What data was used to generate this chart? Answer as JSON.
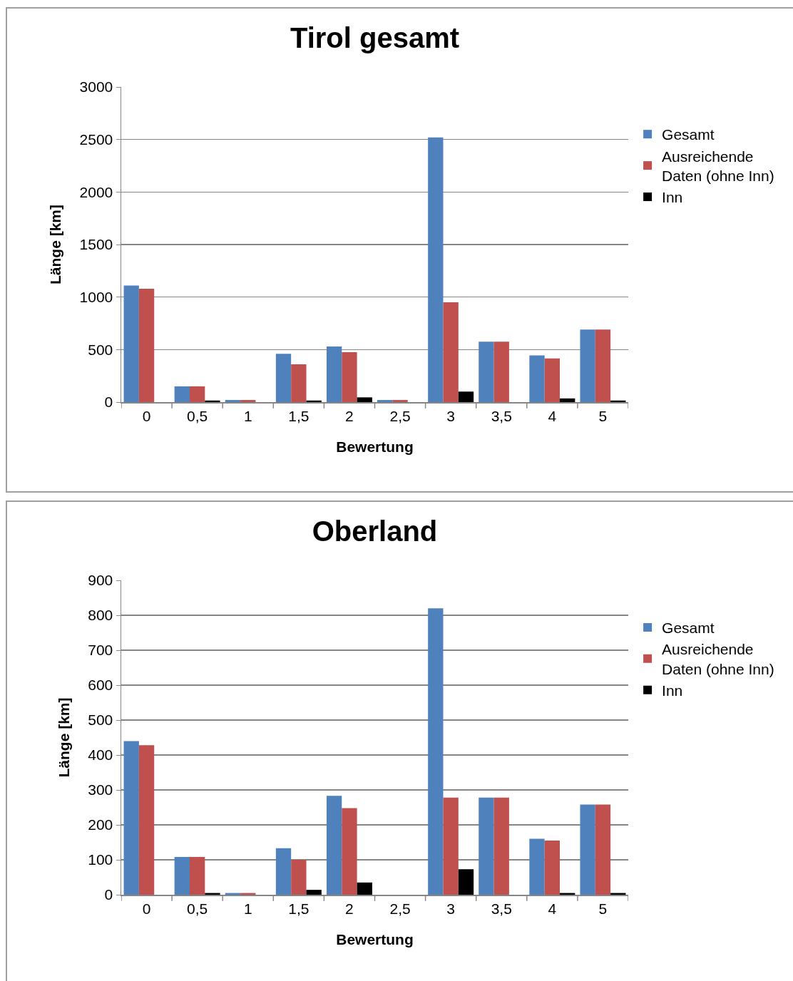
{
  "chart_data": [
    {
      "type": "bar",
      "title": "Tirol gesamt",
      "xlabel": "Bewertung",
      "ylabel": "Länge [km]",
      "categories": [
        "0",
        "0,5",
        "1",
        "1,5",
        "2",
        "2,5",
        "3",
        "3,5",
        "4",
        "5"
      ],
      "series": [
        {
          "name": "Gesamt",
          "color": "#4f81bd",
          "values": [
            1110,
            150,
            20,
            460,
            530,
            20,
            2520,
            575,
            445,
            690
          ]
        },
        {
          "name": "Ausreichende Daten (ohne Inn)",
          "color": "#c0504d",
          "values": [
            1080,
            150,
            20,
            360,
            475,
            20,
            950,
            575,
            415,
            690
          ]
        },
        {
          "name": "Inn",
          "color": "#000000",
          "values": [
            0,
            15,
            0,
            15,
            45,
            0,
            100,
            0,
            35,
            15
          ]
        }
      ],
      "ylim": [
        0,
        3000
      ],
      "yticks": [
        0,
        500,
        1000,
        1500,
        2000,
        2500,
        3000
      ],
      "grid": "y",
      "legend": "right"
    },
    {
      "type": "bar",
      "title": "Oberland",
      "xlabel": "Bewertung",
      "ylabel": "Länge [km]",
      "categories": [
        "0",
        "0,5",
        "1",
        "1,5",
        "2",
        "2,5",
        "3",
        "3,5",
        "4",
        "5"
      ],
      "series": [
        {
          "name": "Gesamt",
          "color": "#4f81bd",
          "values": [
            440,
            108,
            5,
            133,
            283,
            0,
            820,
            278,
            160,
            258
          ]
        },
        {
          "name": "Ausreichende Daten (ohne Inn)",
          "color": "#c0504d",
          "values": [
            428,
            108,
            5,
            100,
            248,
            0,
            278,
            278,
            155,
            258
          ]
        },
        {
          "name": "Inn",
          "color": "#000000",
          "values": [
            0,
            5,
            0,
            14,
            35,
            0,
            73,
            0,
            5,
            5
          ]
        }
      ],
      "ylim": [
        0,
        900
      ],
      "yticks": [
        0,
        100,
        200,
        300,
        400,
        500,
        600,
        700,
        800,
        900
      ],
      "grid": "y",
      "legend": "right"
    }
  ]
}
